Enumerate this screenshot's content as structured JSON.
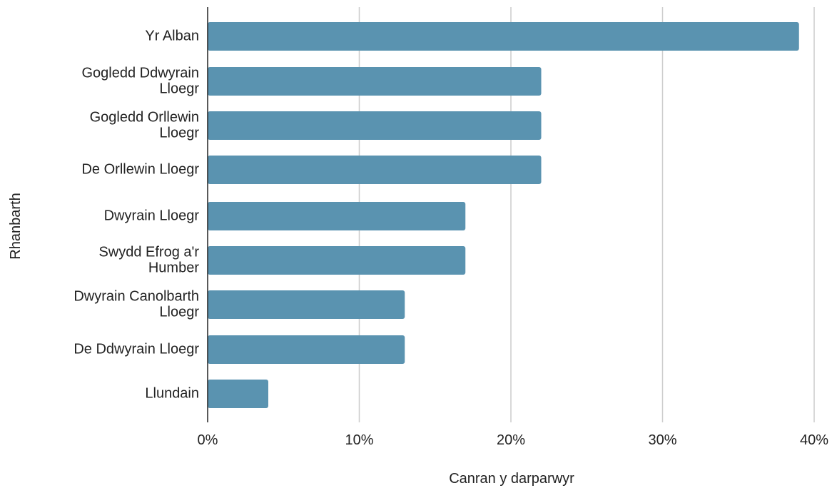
{
  "chart_data": {
    "type": "bar",
    "orientation": "horizontal",
    "categories": [
      [
        "Yr Alban"
      ],
      [
        "Gogledd Ddwyrain",
        "Lloegr"
      ],
      [
        "Gogledd Orllewin",
        "Lloegr"
      ],
      [
        "De Orllewin Lloegr"
      ],
      [
        "Dwyrain Lloegr"
      ],
      [
        "Swydd Efrog a'r",
        "Humber"
      ],
      [
        "Dwyrain Canolbarth",
        "Lloegr"
      ],
      [
        "De Ddwyrain Lloegr"
      ],
      [
        "Llundain"
      ]
    ],
    "values": [
      39,
      22,
      22,
      22,
      17,
      17,
      13,
      13,
      4
    ],
    "xlabel": "Canran y darparwyr",
    "ylabel": "Rhanbarth",
    "xlim": [
      0,
      40
    ],
    "xticks": [
      0,
      10,
      20,
      30,
      40
    ],
    "xtick_labels": [
      "0%",
      "10%",
      "20%",
      "30%",
      "40%"
    ],
    "grid": "vertical",
    "colors": {
      "bar": "#5a93b0",
      "grid": "#cccccc",
      "axis": "#222222"
    }
  }
}
